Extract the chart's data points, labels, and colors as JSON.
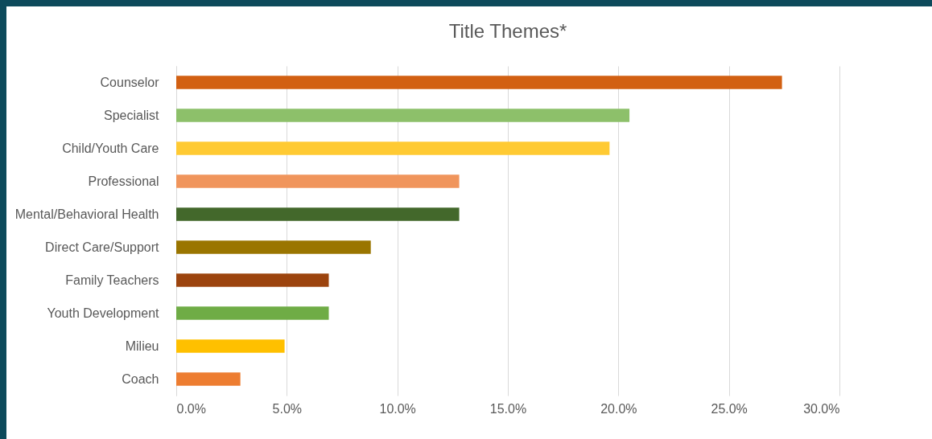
{
  "chart_data": {
    "type": "bar",
    "orientation": "horizontal",
    "title": "Title Themes*",
    "categories": [
      "Counselor",
      "Specialist",
      "Child/Youth Care",
      "Professional",
      "Mental/Behavioral Health",
      "Direct Care/Support",
      "Family Teachers",
      "Youth Development",
      "Milieu",
      "Coach"
    ],
    "values": [
      27.4,
      20.5,
      19.6,
      12.8,
      12.8,
      8.8,
      6.9,
      6.9,
      4.9,
      2.9
    ],
    "colors": [
      "#d26012",
      "#8dc06a",
      "#ffca33",
      "#f0955c",
      "#43682b",
      "#9a7500",
      "#9c440e",
      "#6fac46",
      "#ffc000",
      "#ed7d31"
    ],
    "xlim": [
      0,
      30
    ],
    "xticks": [
      {
        "value": 0,
        "label": "0.0%"
      },
      {
        "value": 5,
        "label": "5.0%"
      },
      {
        "value": 10,
        "label": "10.0%"
      },
      {
        "value": 15,
        "label": "15.0%"
      },
      {
        "value": 20,
        "label": "20.0%"
      },
      {
        "value": 25,
        "label": "25.0%"
      },
      {
        "value": 30,
        "label": "30.0%"
      }
    ],
    "grid": "x",
    "legend": false
  }
}
